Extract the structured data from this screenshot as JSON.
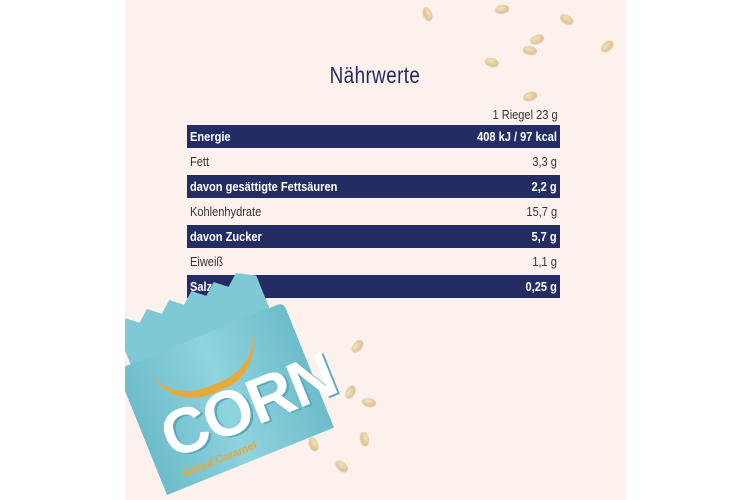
{
  "title": "Nährwerte",
  "serving_header": "1 Riegel 23 g",
  "rows": [
    {
      "label": "Energie",
      "value": "408 kJ / 97 kcal",
      "highlight": true
    },
    {
      "label": "Fett",
      "value": "3,3 g",
      "highlight": false
    },
    {
      "label": "davon gesättigte Fettsäuren",
      "value": "2,2 g",
      "highlight": true
    },
    {
      "label": "Kohlenhydrate",
      "value": "15,7 g",
      "highlight": false
    },
    {
      "label": "davon Zucker",
      "value": "5,7 g",
      "highlight": true
    },
    {
      "label": "Eiweiß",
      "value": "1,1 g",
      "highlight": false
    },
    {
      "label": "Salz",
      "value": "0,25 g",
      "highlight": true
    }
  ],
  "product": {
    "brand": "CORN",
    "flavor": "Salted Caramel"
  },
  "colors": {
    "navy": "#232d64",
    "background": "#fcf1ec",
    "wrapper": "#7fc9d6",
    "accent": "#e7a93a"
  }
}
